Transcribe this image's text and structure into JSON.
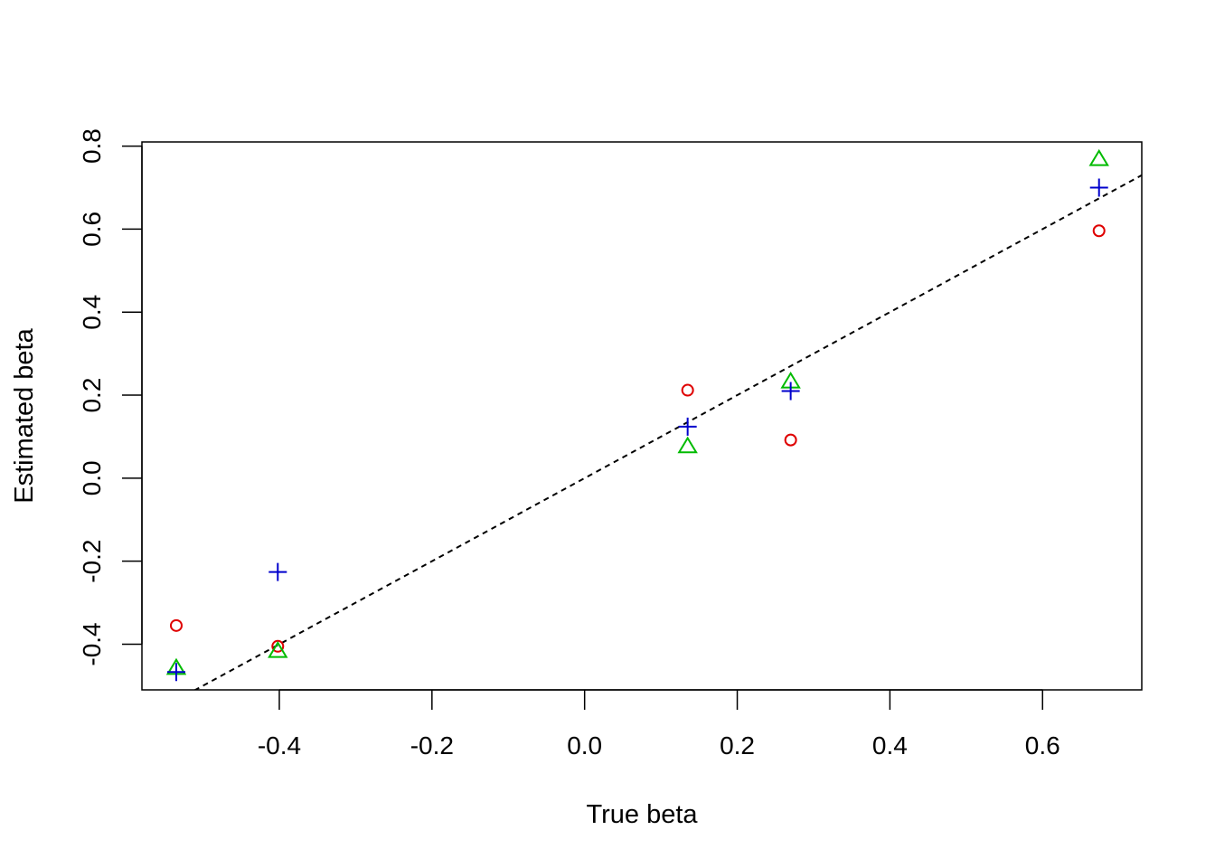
{
  "chart_data": {
    "type": "scatter",
    "title": "",
    "xlabel": "True beta",
    "ylabel": "Estimated beta",
    "xlim": [
      -0.58,
      0.73
    ],
    "ylim": [
      -0.51,
      0.81
    ],
    "x_ticks": [
      -0.4,
      -0.2,
      0.0,
      0.2,
      0.4,
      0.6
    ],
    "x_tick_labels": [
      "-0.4",
      "-0.2",
      "0.0",
      "0.2",
      "0.4",
      "0.6"
    ],
    "y_ticks": [
      -0.4,
      -0.2,
      0.0,
      0.2,
      0.4,
      0.6,
      0.8
    ],
    "y_tick_labels": [
      "-0.4",
      "-0.2",
      "0.0",
      "0.2",
      "0.4",
      "0.6",
      "0.8"
    ],
    "grid": false,
    "legend": "none",
    "reference_line": {
      "slope": 1,
      "intercept": 0,
      "style": "dashed",
      "color": "#000000"
    },
    "series": [
      {
        "marker": "circle",
        "color": "#DF0000",
        "points": [
          {
            "x": -0.535,
            "y": -0.355
          },
          {
            "x": -0.402,
            "y": -0.405
          },
          {
            "x": 0.135,
            "y": 0.212
          },
          {
            "x": 0.27,
            "y": 0.092
          },
          {
            "x": 0.674,
            "y": 0.596
          }
        ]
      },
      {
        "marker": "triangle",
        "color": "#00BB00",
        "points": [
          {
            "x": -0.535,
            "y": -0.458
          },
          {
            "x": -0.402,
            "y": -0.417
          },
          {
            "x": 0.135,
            "y": 0.076
          },
          {
            "x": 0.27,
            "y": 0.232
          },
          {
            "x": 0.674,
            "y": 0.768
          }
        ]
      },
      {
        "marker": "plus",
        "color": "#0000CC",
        "points": [
          {
            "x": -0.535,
            "y": -0.467
          },
          {
            "x": -0.402,
            "y": -0.226
          },
          {
            "x": 0.135,
            "y": 0.124
          },
          {
            "x": 0.27,
            "y": 0.21
          },
          {
            "x": 0.674,
            "y": 0.7
          }
        ]
      }
    ]
  }
}
